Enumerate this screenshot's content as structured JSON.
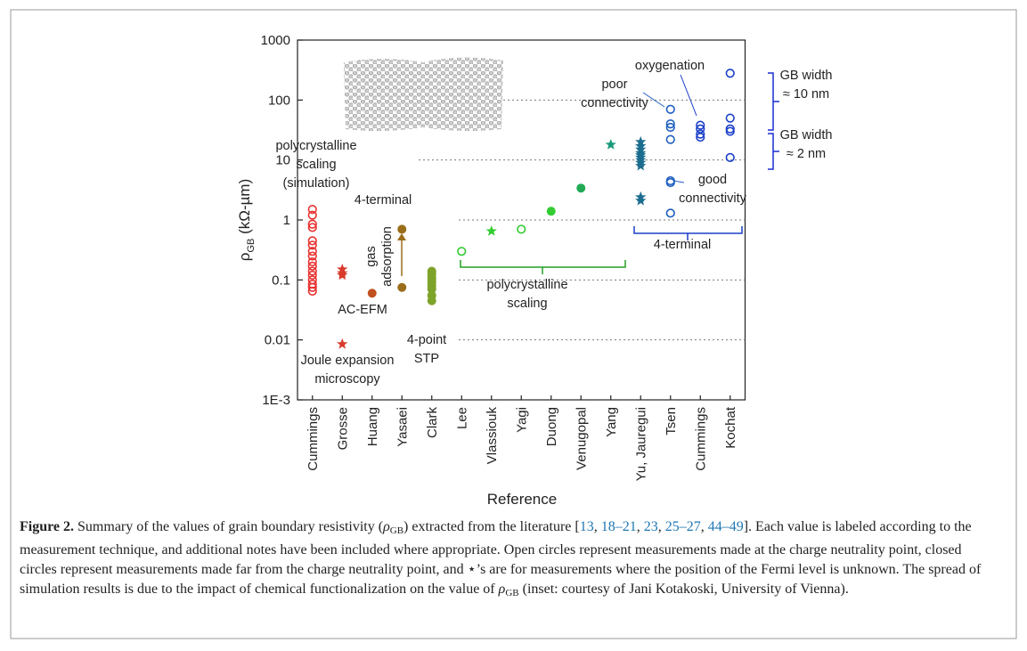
{
  "chart_data": {
    "type": "scatter",
    "log_y": true,
    "grid": true,
    "categories": [
      "Cummings",
      "Grosse",
      "Huang",
      "Yasaei",
      "Clark",
      "Lee",
      "Vlassiouk",
      "Yagi",
      "Duong",
      "Venugopal",
      "Yang",
      "Yu, Jauregui",
      "Tsen",
      "Cummings",
      "Kochat"
    ],
    "ylim": [
      0.001,
      1000
    ],
    "yticks": [
      {
        "value": 0.001,
        "label": "1E-3"
      },
      0.01,
      0.1,
      1,
      10,
      100,
      1000
    ],
    "ylabel": {
      "symbol": "ρ",
      "subscript": "GB",
      "unit": " (kΩ-µm)"
    },
    "xlabel": "Reference",
    "series": [
      {
        "marker": "open",
        "color": "#e8312f",
        "values": [
          [
            1.5,
            1.2,
            0.85,
            0.75,
            0.45,
            0.38,
            0.3,
            0.25,
            0.2,
            0.17,
            0.14,
            0.12,
            0.1,
            0.085,
            0.075,
            0.065
          ],
          null,
          null,
          null,
          null,
          null,
          null,
          null,
          null,
          null,
          null,
          null,
          null,
          null,
          null
        ]
      },
      {
        "marker": "star",
        "color": "#d93a2b",
        "values": [
          null,
          [
            0.15,
            0.13,
            0.12,
            0.0085
          ],
          null,
          null,
          null,
          null,
          null,
          null,
          null,
          null,
          null,
          null,
          null,
          null,
          null
        ]
      },
      {
        "marker": "closed",
        "color": "#c0501f",
        "values": [
          null,
          null,
          [
            0.06
          ],
          null,
          null,
          null,
          null,
          null,
          null,
          null,
          null,
          null,
          null,
          null,
          null
        ]
      },
      {
        "marker": "closed",
        "color": "#9a6e1a",
        "values": [
          null,
          null,
          null,
          [
            0.7,
            0.075
          ],
          null,
          null,
          null,
          null,
          null,
          null,
          null,
          null,
          null,
          null,
          null
        ]
      },
      {
        "marker": "closed",
        "color": "#7ea32a",
        "values": [
          null,
          null,
          null,
          null,
          [
            0.14,
            0.125,
            0.11,
            0.1,
            0.09,
            0.08,
            0.07,
            0.055,
            0.045
          ],
          null,
          null,
          null,
          null,
          null,
          null,
          null,
          null,
          null,
          null
        ]
      },
      {
        "marker": "open",
        "color": "#33cc33",
        "values": [
          null,
          null,
          null,
          null,
          null,
          [
            0.3
          ],
          null,
          [
            0.7
          ],
          null,
          null,
          null,
          null,
          null,
          null,
          null
        ]
      },
      {
        "marker": "star",
        "color": "#33cc33",
        "values": [
          null,
          null,
          null,
          null,
          null,
          null,
          [
            0.65
          ],
          null,
          null,
          null,
          null,
          null,
          null,
          null,
          null
        ]
      },
      {
        "marker": "closed",
        "color": "#33cc33",
        "values": [
          null,
          null,
          null,
          null,
          null,
          null,
          null,
          null,
          [
            1.4
          ],
          null,
          null,
          null,
          null,
          null,
          null
        ]
      },
      {
        "marker": "closed",
        "color": "#22aa55",
        "values": [
          null,
          null,
          null,
          null,
          null,
          null,
          null,
          null,
          null,
          [
            3.4
          ],
          null,
          null,
          null,
          null,
          null
        ]
      },
      {
        "marker": "star",
        "color": "#1a9a7a",
        "values": [
          null,
          null,
          null,
          null,
          null,
          null,
          null,
          null,
          null,
          null,
          [
            18
          ],
          null,
          null,
          null,
          null
        ]
      },
      {
        "marker": "star",
        "color": "#1d6d8f",
        "values": [
          null,
          null,
          null,
          null,
          null,
          null,
          null,
          null,
          null,
          null,
          null,
          [
            20,
            17,
            15,
            13,
            12,
            11,
            10,
            9,
            8,
            2.4,
            2.1
          ],
          null,
          null,
          null
        ]
      },
      {
        "marker": "open",
        "color": "#1d5fbf",
        "values": [
          null,
          null,
          null,
          null,
          null,
          null,
          null,
          null,
          null,
          null,
          null,
          null,
          [
            70,
            40,
            35,
            22,
            4.5,
            4.2,
            1.3
          ],
          null,
          null
        ]
      },
      {
        "marker": "open",
        "color": "#1a3fc8",
        "values": [
          null,
          null,
          null,
          null,
          null,
          null,
          null,
          null,
          null,
          null,
          null,
          null,
          null,
          [
            38,
            33,
            27,
            24
          ],
          [
            280,
            50,
            33,
            30,
            11
          ]
        ]
      }
    ],
    "annotations": [
      {
        "lines": [
          "polycrystalline",
          "scaling",
          "(simulation)"
        ],
        "color": "#e8312f"
      },
      {
        "lines": [
          "4-terminal"
        ],
        "color": "#9a6e1a"
      },
      {
        "lines": [
          "gas",
          "adsorption"
        ],
        "color": "#9a6e1a"
      },
      {
        "lines": [
          "AC-EFM"
        ],
        "color": "#c0501f"
      },
      {
        "lines": [
          "Joule expansion",
          "microscopy"
        ],
        "color": "#e8312f"
      },
      {
        "lines": [
          "4-point",
          "STP"
        ],
        "color": "#7ea32a"
      },
      {
        "lines": [
          "polycrystalline",
          "scaling"
        ],
        "color": "#22a020"
      },
      {
        "lines": [
          "poor",
          "connectivity"
        ],
        "color": "#1d5fbf"
      },
      {
        "lines": [
          "good",
          "connectivity"
        ],
        "color": "#1d5fbf"
      },
      {
        "lines": [
          "oxygenation"
        ],
        "color": "#1a3fc8"
      },
      {
        "lines": [
          "4-terminal"
        ],
        "color": "#1a3fc8"
      },
      {
        "lines": [
          "GB width",
          "≈ 10 nm"
        ],
        "color": "#1a2fd0"
      },
      {
        "lines": [
          "GB width",
          "≈ 2 nm"
        ],
        "color": "#1a2fd0"
      }
    ]
  },
  "caption": [
    {
      "text": "Figure 2.",
      "style": "bold"
    },
    {
      "text": " Summary of the values of grain boundary resistivity ("
    },
    {
      "text": "ρ",
      "style": "math"
    },
    {
      "text": "GB",
      "style": "sub"
    },
    {
      "text": ") extracted from the literature ["
    },
    {
      "text": "13",
      "style": "ref"
    },
    {
      "text": ", "
    },
    {
      "text": "18–21",
      "style": "ref"
    },
    {
      "text": ", "
    },
    {
      "text": "23",
      "style": "ref"
    },
    {
      "text": ", "
    },
    {
      "text": "25–27",
      "style": "ref"
    },
    {
      "text": ", "
    },
    {
      "text": "44–49",
      "style": "ref"
    },
    {
      "text": "]. Each value is labeled according to the measurement technique, and additional notes have been included where appropriate. Open circles represent measurements made at the charge neutrality point, closed circles represent measurements made far from the charge neutrality point, and ⋆’s are for measurements where the position of the Fermi level is unknown. The spread of simulation results is due to the impact of chemical functionalization on the value of "
    },
    {
      "text": "ρ",
      "style": "math"
    },
    {
      "text": "GB",
      "style": "sub"
    },
    {
      "text": " (inset: courtesy of Jani Kotakoski, University of Vienna)."
    }
  ]
}
